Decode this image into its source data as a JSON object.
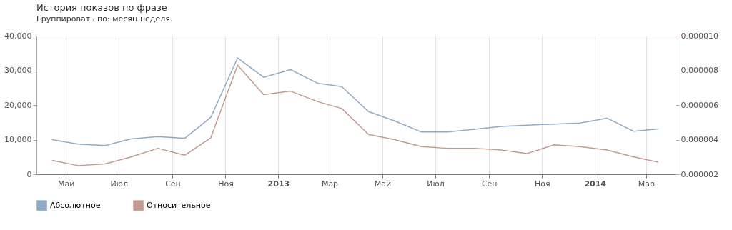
{
  "chart_data": {
    "type": "line",
    "title": "История показов по фразе",
    "annotations": [
      "Группировать по:",
      "месяц",
      "неделя"
    ],
    "x": [
      "2012-04-15",
      "2012-05-15",
      "2012-06-15",
      "2012-07-15",
      "2012-08-15",
      "2012-09-15",
      "2012-10-15",
      "2012-11-15",
      "2012-12-15",
      "2013-01-15",
      "2013-02-15",
      "2013-03-15",
      "2013-04-15",
      "2013-05-15",
      "2013-06-15",
      "2013-07-15",
      "2013-08-15",
      "2013-09-15",
      "2013-10-15",
      "2013-11-15",
      "2013-12-15",
      "2014-01-15",
      "2014-02-15",
      "2014-03-15"
    ],
    "series": [
      {
        "name": "Абсолютное",
        "color": "#8fabc7",
        "values": [
          10000,
          8700,
          8300,
          10200,
          10900,
          10400,
          16400,
          33600,
          28000,
          30200,
          26300,
          25300,
          18100,
          15400,
          12200,
          12200,
          13000,
          13800,
          14200,
          14500,
          14800,
          16200,
          12400,
          13100
        ]
      },
      {
        "name": "Относительное",
        "color": "#c49a8e",
        "axis": "y2",
        "values": [
          2.8e-06,
          2.5e-06,
          2.6e-06,
          3e-06,
          3.5e-06,
          3.1e-06,
          4.1e-06,
          8.3e-06,
          6.6e-06,
          6.8e-06,
          6.2e-06,
          5.8e-06,
          4.3e-06,
          4e-06,
          3.6e-06,
          3.5e-06,
          3.5e-06,
          3.4e-06,
          3.2e-06,
          3.7e-06,
          3.6e-06,
          3.4e-06,
          3e-06,
          2.7e-06
        ]
      }
    ],
    "xlim": [
      "2012-03-28",
      "2014-04-04"
    ],
    "xticks": [
      {
        "value": "2012-05-01",
        "label": "Май"
      },
      {
        "value": "2012-07-01",
        "label": "Июл"
      },
      {
        "value": "2012-09-01",
        "label": "Сен"
      },
      {
        "value": "2012-11-01",
        "label": "Ноя"
      },
      {
        "value": "2013-01-01",
        "label": "2013"
      },
      {
        "value": "2013-03-01",
        "label": "Мар"
      },
      {
        "value": "2013-05-01",
        "label": "Май"
      },
      {
        "value": "2013-07-01",
        "label": "Июл"
      },
      {
        "value": "2013-09-01",
        "label": "Сен"
      },
      {
        "value": "2013-11-01",
        "label": "Ноя"
      },
      {
        "value": "2014-01-01",
        "label": "2014"
      },
      {
        "value": "2014-03-01",
        "label": "Мар"
      }
    ],
    "ylim": [
      0,
      40000
    ],
    "yticks": [
      {
        "value": 0,
        "label": "0"
      },
      {
        "value": 10000,
        "label": "10,000"
      },
      {
        "value": 20000,
        "label": "20,000"
      },
      {
        "value": 30000,
        "label": "30,000"
      },
      {
        "value": 40000,
        "label": "40,000"
      }
    ],
    "y2lim": [
      2e-06,
      1e-05
    ],
    "y2ticks": [
      {
        "value": 2e-06,
        "label": "0.000002"
      },
      {
        "value": 4e-06,
        "label": "0.000004"
      },
      {
        "value": 6e-06,
        "label": "0.000006"
      },
      {
        "value": 8e-06,
        "label": "0.000008"
      },
      {
        "value": 1e-05,
        "label": "0.000010"
      }
    ],
    "grid": "x",
    "legend": "bottom left",
    "marker": "none",
    "line_style": "solid"
  }
}
